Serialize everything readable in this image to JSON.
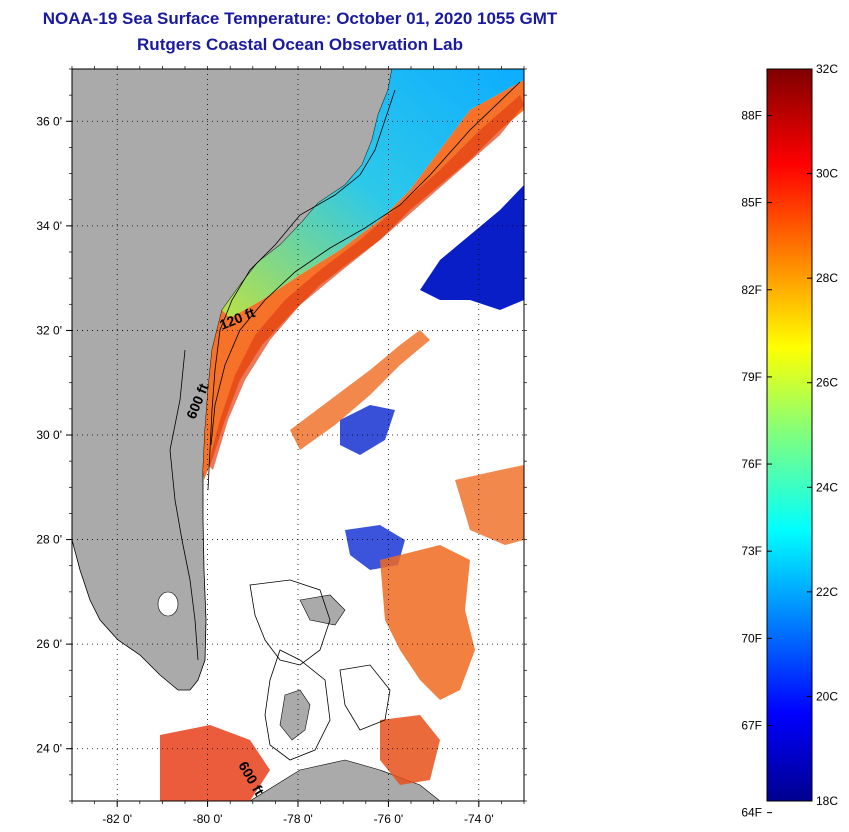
{
  "header": {
    "title": "NOAA-19 Sea Surface Temperature:  October 01, 2020 1055 GMT",
    "subtitle": "Rutgers Coastal Ocean Observation Lab"
  },
  "map": {
    "lon_range": [
      -83,
      -73
    ],
    "lat_range": [
      23,
      37
    ],
    "lon_ticks": [
      {
        "value": -82,
        "label": "-82 0'"
      },
      {
        "value": -80,
        "label": "-80 0'"
      },
      {
        "value": -78,
        "label": "-78 0'"
      },
      {
        "value": -76,
        "label": "-76 0'"
      },
      {
        "value": -74,
        "label": "-74 0'"
      }
    ],
    "lat_ticks": [
      {
        "value": 36,
        "label": "36 0'"
      },
      {
        "value": 34,
        "label": "34 0'"
      },
      {
        "value": 32,
        "label": "32 0'"
      },
      {
        "value": 30,
        "label": "30 0'"
      },
      {
        "value": 28,
        "label": "28 0'"
      },
      {
        "value": 26,
        "label": "26 0'"
      },
      {
        "value": 24,
        "label": "24 0'"
      }
    ],
    "contour_labels": [
      "120 ft",
      "600 ft",
      "600 ft"
    ],
    "colors": {
      "land": "#aaaaaa",
      "no_data": "#ffffff"
    }
  },
  "colorbar": {
    "celsius": [
      {
        "value": 32,
        "label": "32C"
      },
      {
        "value": 30,
        "label": "30C"
      },
      {
        "value": 28,
        "label": "28C"
      },
      {
        "value": 26,
        "label": "26C"
      },
      {
        "value": 24,
        "label": "24C"
      },
      {
        "value": 22,
        "label": "22C"
      },
      {
        "value": 20,
        "label": "20C"
      },
      {
        "value": 18,
        "label": "18C"
      }
    ],
    "fahrenheit": [
      {
        "value": 88,
        "label": "88F"
      },
      {
        "value": 85,
        "label": "85F"
      },
      {
        "value": 82,
        "label": "82F"
      },
      {
        "value": 79,
        "label": "79F"
      },
      {
        "value": 76,
        "label": "76F"
      },
      {
        "value": 73,
        "label": "73F"
      },
      {
        "value": 70,
        "label": "70F"
      },
      {
        "value": 67,
        "label": "67F"
      },
      {
        "value": 64,
        "label": "64F"
      }
    ],
    "range_c": [
      18,
      32
    ]
  }
}
